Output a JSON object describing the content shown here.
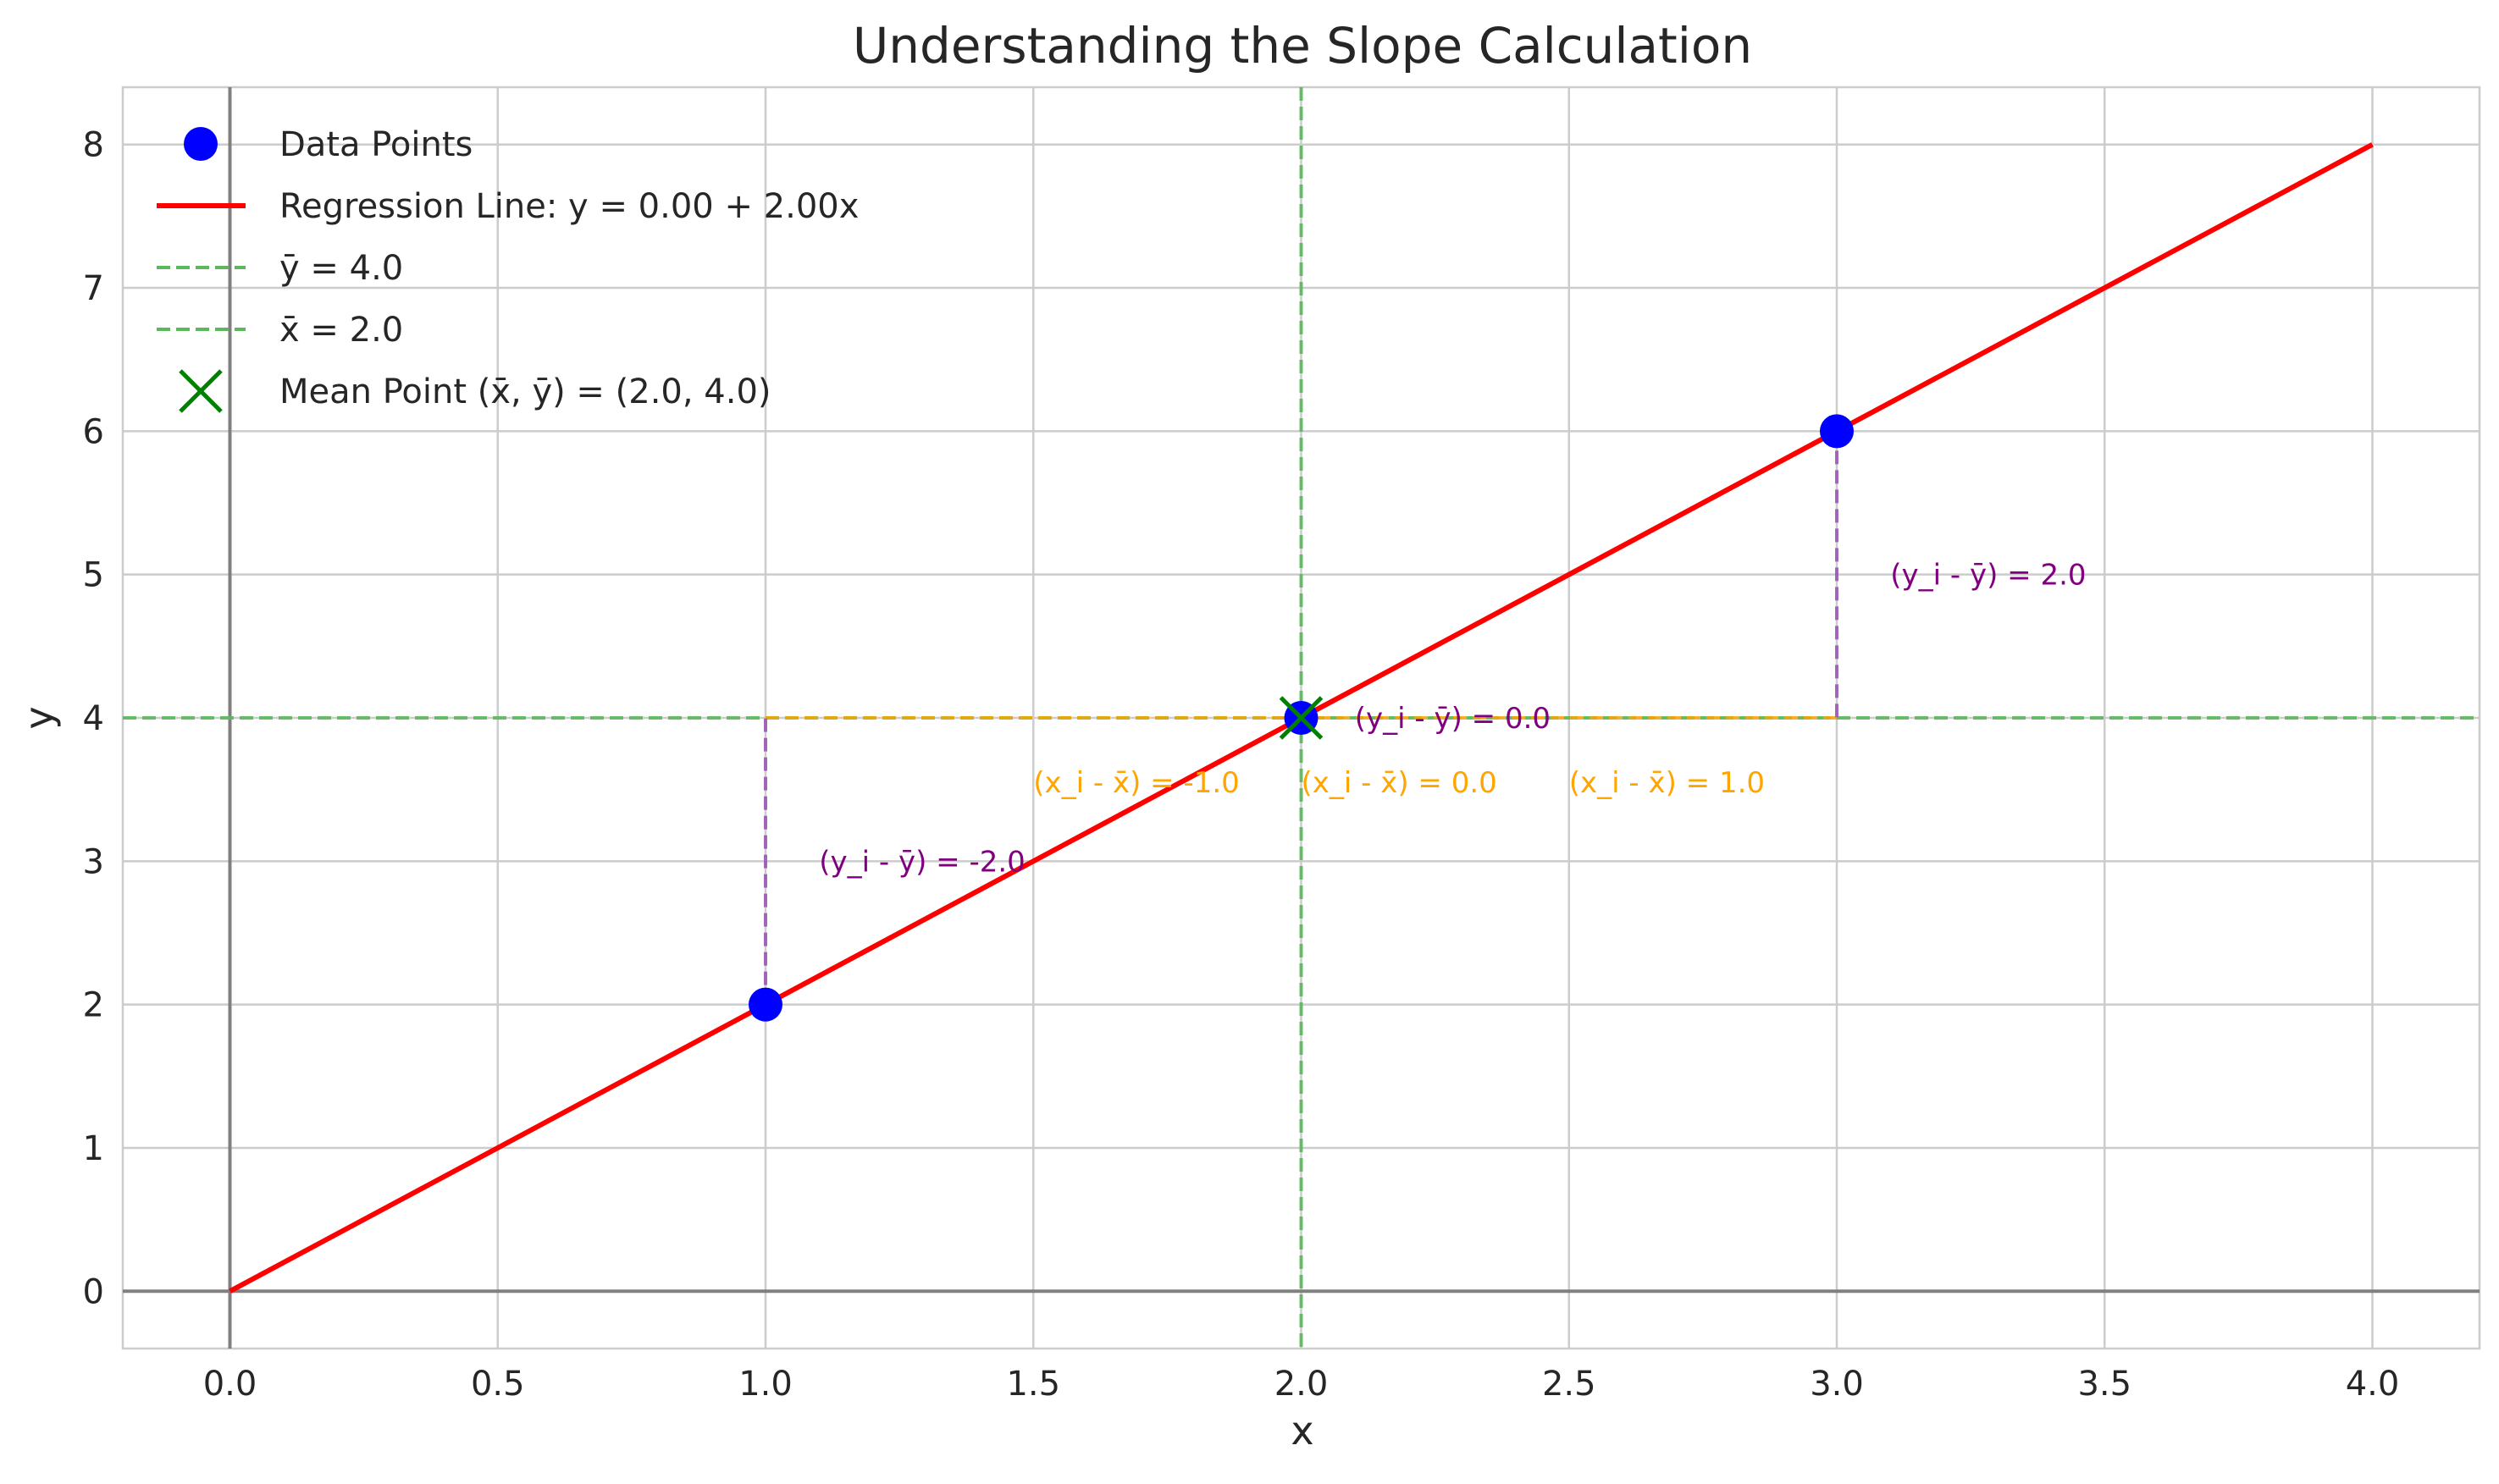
{
  "chart_data": {
    "type": "scatter",
    "title": "Understanding the Slope Calculation",
    "xlabel": "x",
    "ylabel": "y",
    "xlim": [
      -0.2,
      4.2
    ],
    "ylim": [
      -0.4,
      8.4
    ],
    "xticks": [
      0.0,
      0.5,
      1.0,
      1.5,
      2.0,
      2.5,
      3.0,
      3.5,
      4.0
    ],
    "xtick_labels": [
      "0.0",
      "0.5",
      "1.0",
      "1.5",
      "2.0",
      "2.5",
      "3.0",
      "3.5",
      "4.0"
    ],
    "yticks": [
      0,
      1,
      2,
      3,
      4,
      5,
      6,
      7,
      8
    ],
    "ytick_labels": [
      "0",
      "1",
      "2",
      "3",
      "4",
      "5",
      "6",
      "7",
      "8"
    ],
    "grid": true,
    "legend_position": "top-left",
    "mean_x": 2.0,
    "mean_y": 4.0,
    "colors": {
      "points": "#0000ff",
      "regression": "#ff0000",
      "mean_lines": "#5cb85c",
      "mean_marker": "#008000",
      "x_deviation": "#ffa500",
      "y_deviation": "#9b59b6",
      "y_annot_text": "#800080",
      "x_annot_text": "#ffa500",
      "axis_lines": "#808080",
      "grid": "#cccccc"
    },
    "series": [
      {
        "name": "Data Points",
        "kind": "scatter",
        "x": [
          1.0,
          2.0,
          3.0
        ],
        "y": [
          2.0,
          4.0,
          6.0
        ]
      },
      {
        "name": "Regression Line: y = 0.00 + 2.00x",
        "kind": "line",
        "x": [
          0.0,
          4.0
        ],
        "y": [
          0.0,
          8.0
        ]
      },
      {
        "name": "ȳ = 4.0",
        "kind": "hline",
        "y": 4.0
      },
      {
        "name": "x̄ = 2.0",
        "kind": "vline",
        "x": 2.0
      },
      {
        "name": "Mean Point (x̄, ȳ) = (2.0, 4.0)",
        "kind": "marker",
        "x": 2.0,
        "y": 4.0
      }
    ],
    "x_deviations": [
      {
        "x": 1.0,
        "label": "(x_i - x̄) = -1.0",
        "label_x": 1.5,
        "label_y": 3.55
      },
      {
        "x": 2.0,
        "label": "(x_i - x̄) = 0.0",
        "label_x": 2.0,
        "label_y": 3.55
      },
      {
        "x": 3.0,
        "label": "(x_i - x̄) = 1.0",
        "label_x": 2.5,
        "label_y": 3.55
      }
    ],
    "y_deviations": [
      {
        "x": 1.0,
        "y": 2.0,
        "label": "(y_i - ȳ) = -2.0",
        "label_x": 1.1,
        "label_y": 3.0
      },
      {
        "x": 2.0,
        "y": 4.0,
        "label": "(y_i - ȳ) = 0.0",
        "label_x": 2.1,
        "label_y": 4.0
      },
      {
        "x": 3.0,
        "y": 6.0,
        "label": "(y_i - ȳ) = 2.0",
        "label_x": 3.1,
        "label_y": 5.0
      }
    ]
  }
}
